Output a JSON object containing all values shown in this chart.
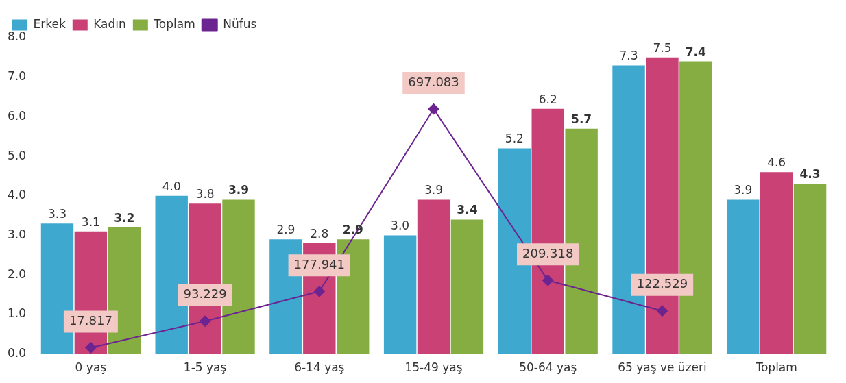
{
  "chart_data": {
    "type": "bar",
    "categories": [
      "0 yaş",
      "1-5 yaş",
      "6-14 yaş",
      "15-49 yaş",
      "50-64 yaş",
      "65 yaş ve üzeri",
      "Toplam"
    ],
    "series": [
      {
        "name": "Erkek",
        "color": "#3ea8cf",
        "values": [
          3.3,
          4.0,
          2.9,
          3.0,
          5.2,
          7.3,
          3.9
        ],
        "value_labels": [
          "3.3",
          "4.0",
          "2.9",
          "3.0",
          "5.2",
          "7.3",
          "3.9"
        ]
      },
      {
        "name": "Kadın",
        "color": "#c94175",
        "values": [
          3.1,
          3.8,
          2.8,
          3.9,
          6.2,
          7.5,
          4.6
        ],
        "value_labels": [
          "3.1",
          "3.8",
          "2.8",
          "3.9",
          "6.2",
          "7.5",
          "4.6"
        ]
      },
      {
        "name": "Toplam",
        "color": "#85ad41",
        "values": [
          3.2,
          3.9,
          2.9,
          3.4,
          5.7,
          7.4,
          4.3
        ],
        "value_labels": [
          "3.2",
          "3.9",
          "2.9",
          "3.4",
          "5.7",
          "7.4",
          "4.3"
        ]
      },
      {
        "name": "Nüfus",
        "type": "line",
        "axis": "y2",
        "color": "#6b2490",
        "marker": "diamond",
        "values": [
          17.817,
          93.229,
          177.941,
          697.083,
          209.318,
          122.529,
          null
        ],
        "value_labels": [
          "17.817",
          "93.229",
          "177.941",
          "697.083",
          "209.318",
          "122.529",
          null
        ]
      }
    ],
    "ylim": [
      0,
      8
    ],
    "yticks": [
      {
        "value": 0,
        "label": "0.0"
      },
      {
        "value": 1,
        "label": "1.0"
      },
      {
        "value": 2,
        "label": "2.0"
      },
      {
        "value": 3,
        "label": "3.0"
      },
      {
        "value": 4,
        "label": "4.0"
      },
      {
        "value": 5,
        "label": "5.0"
      },
      {
        "value": 6,
        "label": "6.0"
      },
      {
        "value": 7,
        "label": "7.0"
      },
      {
        "value": 8,
        "label": "8.0"
      }
    ],
    "tick_labels": "xy",
    "grid": false,
    "legend": "top left"
  }
}
